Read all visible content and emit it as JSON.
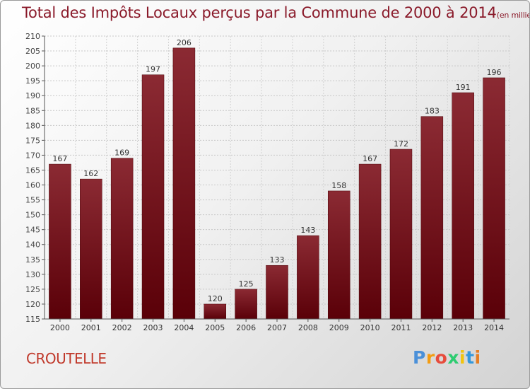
{
  "chart_data": {
    "type": "bar",
    "title": "Total des Impôts Locaux perçus par la Commune de 2000 à 2014",
    "unit_note": "(en milliers d'€)",
    "categories": [
      "2000",
      "2001",
      "2002",
      "2003",
      "2004",
      "2005",
      "2006",
      "2007",
      "2008",
      "2009",
      "2010",
      "2011",
      "2012",
      "2013",
      "2014"
    ],
    "values": [
      167,
      162,
      169,
      197,
      206,
      120,
      125,
      133,
      143,
      158,
      167,
      172,
      183,
      191,
      196
    ],
    "ylim": [
      115,
      210
    ],
    "yticks": [
      115,
      120,
      125,
      130,
      135,
      140,
      145,
      150,
      155,
      160,
      165,
      170,
      175,
      180,
      185,
      190,
      195,
      200,
      205,
      210
    ],
    "xlabel": "",
    "ylabel": "",
    "grid": true,
    "bar_color": "#7a1420"
  },
  "commune_name": "CROUTELLE",
  "logo": {
    "letters": [
      "P",
      "r",
      "o",
      "x",
      "i",
      "t",
      "i"
    ],
    "colors": [
      "#4a90d9",
      "#f39c12",
      "#e74c3c",
      "#2ecc71",
      "#f1c40f",
      "#3498db",
      "#e67e22"
    ]
  }
}
